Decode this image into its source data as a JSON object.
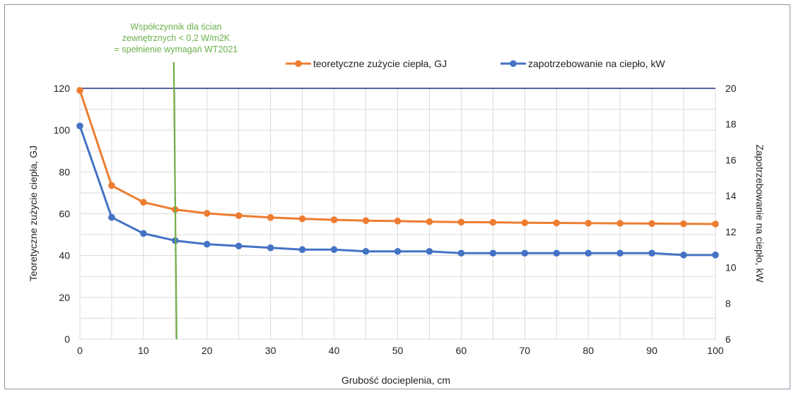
{
  "chart_data": {
    "type": "line",
    "xlabel": "Grubość docieplenia, cm",
    "ylabel_left": "Teoretyczne zużycie ciepła, GJ",
    "ylabel_right": "Zapotrzebowanie na ciepło, kW",
    "x_ticks": [
      "0",
      "10",
      "20",
      "30",
      "40",
      "50",
      "60",
      "70",
      "80",
      "90",
      "100"
    ],
    "y_left_ticks": [
      "0",
      "20",
      "40",
      "60",
      "80",
      "100",
      "120"
    ],
    "y_right_ticks": [
      "6",
      "8",
      "10",
      "12",
      "14",
      "16",
      "18",
      "20"
    ],
    "xlim": [
      0,
      100
    ],
    "ylim_left": [
      0,
      120
    ],
    "ylim_right": [
      6,
      20
    ],
    "grid": true,
    "legend_position": "top",
    "x": [
      0,
      5,
      10,
      15,
      20,
      25,
      30,
      35,
      40,
      45,
      50,
      55,
      60,
      65,
      70,
      75,
      80,
      85,
      90,
      95,
      100
    ],
    "series": [
      {
        "name": "teoretyczne zużycie ciepła, GJ",
        "axis": "left",
        "color": "#ed7d31",
        "values": [
          119,
          73.5,
          65.5,
          62,
          60.2,
          59.1,
          58.2,
          57.6,
          57.1,
          56.7,
          56.5,
          56.2,
          56,
          55.9,
          55.7,
          55.6,
          55.5,
          55.4,
          55.3,
          55.2,
          55.1
        ]
      },
      {
        "name": "zapotrzebowanie na ciepło, kW",
        "axis": "right",
        "color": "#4472c4",
        "values": [
          17.9,
          12.8,
          11.9,
          11.5,
          11.3,
          11.2,
          11.1,
          11,
          11,
          10.9,
          10.9,
          10.9,
          10.8,
          10.8,
          10.8,
          10.8,
          10.8,
          10.8,
          10.8,
          10.7,
          10.7
        ]
      }
    ],
    "annotation": {
      "lines": [
        "Współczynnik dla ścian",
        "zewnętrznych < 0,2 W/m2K",
        "= spełnienie wymagań WT2021"
      ],
      "x_value": 15,
      "color": "#70ad47"
    },
    "top_line_color": "#1f2d7a"
  }
}
